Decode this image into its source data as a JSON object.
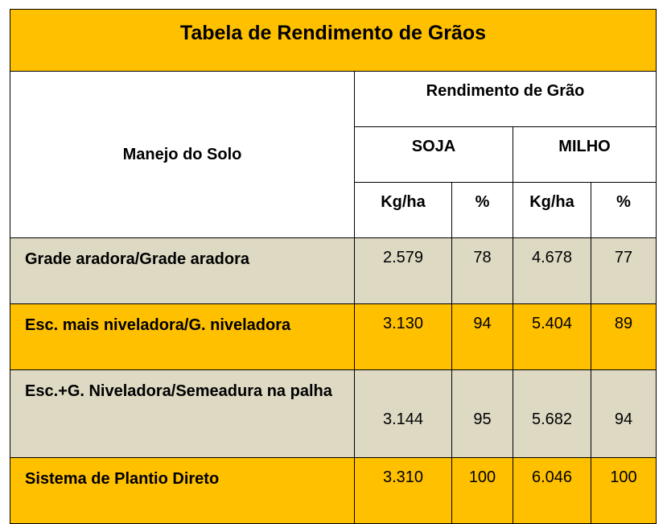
{
  "title": "Tabela de Rendimento de Grãos",
  "headers": {
    "manejo": "Manejo do Solo",
    "rendimento": "Rendimento de Grão",
    "soja": "SOJA",
    "milho": "MILHO",
    "kgha": "Kg/ha",
    "pct": "%"
  },
  "rows": [
    {
      "label": "Grade aradora/Grade aradora",
      "soja_kg": "2.579",
      "soja_pct": "78",
      "milho_kg": "4.678",
      "milho_pct": "77"
    },
    {
      "label": "Esc. mais niveladora/G. niveladora",
      "soja_kg": "3.130",
      "soja_pct": "94",
      "milho_kg": "5.404",
      "milho_pct": "89"
    },
    {
      "label": "Esc.+G. Niveladora/Semeadura na palha",
      "soja_kg": "3.144",
      "soja_pct": "95",
      "milho_kg": "5.682",
      "milho_pct": "94"
    },
    {
      "label": "Sistema de Plantio Direto",
      "soja_kg": "3.310",
      "soja_pct": "100",
      "milho_kg": "6.046",
      "milho_pct": "100"
    }
  ],
  "colors": {
    "gold": "#ffc000",
    "gray": "#ddd9c3"
  }
}
